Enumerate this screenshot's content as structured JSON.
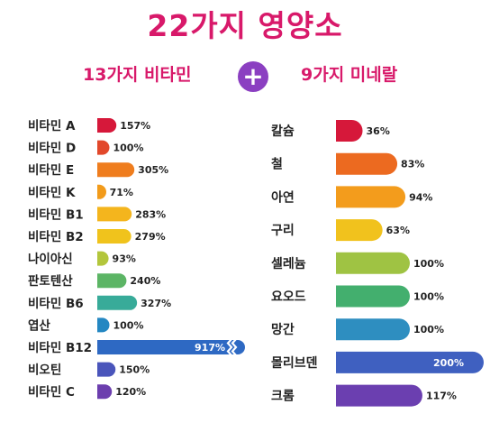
{
  "title": "22가지 영양소",
  "left_header": "13가지 비타민",
  "right_header": "9가지 미네랄",
  "plus_symbol": "+",
  "chart_data": [
    {
      "type": "bar",
      "orientation": "horizontal",
      "title": "13가지 비타민",
      "categories": [
        "비타민 A",
        "비타민 D",
        "비타민 E",
        "비타민 K",
        "비타민 B1",
        "비타민 B2",
        "나이아신",
        "판토텐산",
        "비타민 B6",
        "엽산",
        "비타민 B12",
        "비오틴",
        "비타민 C"
      ],
      "values": [
        157,
        100,
        305,
        71,
        283,
        279,
        93,
        240,
        327,
        100,
        917,
        150,
        120
      ],
      "labels": [
        "157%",
        "100%",
        "305%",
        "71%",
        "283%",
        "279%",
        "93%",
        "240%",
        "327%",
        "100%",
        "917%",
        "150%",
        "120%"
      ],
      "axis_break_after": 327,
      "colors": [
        "#d6183a",
        "#e2482b",
        "#ef7d1e",
        "#f29b1b",
        "#f4b51d",
        "#f0c31c",
        "#b3c63c",
        "#5cb565",
        "#38ab99",
        "#2487c2",
        "#2e69c3",
        "#4a55bb",
        "#6c3eae"
      ]
    },
    {
      "type": "bar",
      "orientation": "horizontal",
      "title": "9가지 미네랄",
      "categories": [
        "칼슘",
        "철",
        "아연",
        "구리",
        "셀레늄",
        "요오드",
        "망간",
        "몰리브덴",
        "크롬"
      ],
      "values": [
        36,
        83,
        94,
        63,
        100,
        100,
        100,
        200,
        117
      ],
      "labels": [
        "36%",
        "83%",
        "94%",
        "63%",
        "100%",
        "100%",
        "100%",
        "200%",
        "117%"
      ],
      "colors": [
        "#d6183a",
        "#ec6a20",
        "#f39c1c",
        "#f1c21d",
        "#9fc343",
        "#43af6e",
        "#2e8ec0",
        "#3f60c0",
        "#6b3fb0"
      ]
    }
  ]
}
